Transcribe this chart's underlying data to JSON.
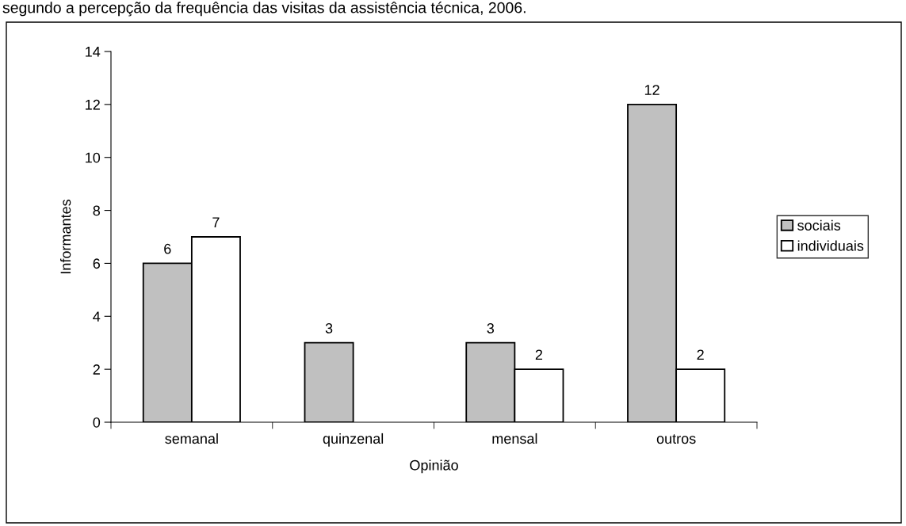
{
  "chart_data": {
    "type": "bar",
    "title": "segundo a percepção da frequência das visitas da assistência técnica, 2006.",
    "xlabel": "Opinião",
    "ylabel": "Informantes",
    "categories": [
      "semanal",
      "quinzenal",
      "mensal",
      "outros"
    ],
    "series": [
      {
        "name": "sociais",
        "color": "#c0c0c0",
        "values": [
          6,
          3,
          3,
          12
        ]
      },
      {
        "name": "individuais",
        "color": "#ffffff",
        "values": [
          7,
          null,
          2,
          2
        ]
      }
    ],
    "ylim": [
      0,
      14
    ],
    "yticks": [
      0,
      2,
      4,
      6,
      8,
      10,
      12,
      14
    ],
    "data_labels": true,
    "legend": "right",
    "grid": false
  }
}
